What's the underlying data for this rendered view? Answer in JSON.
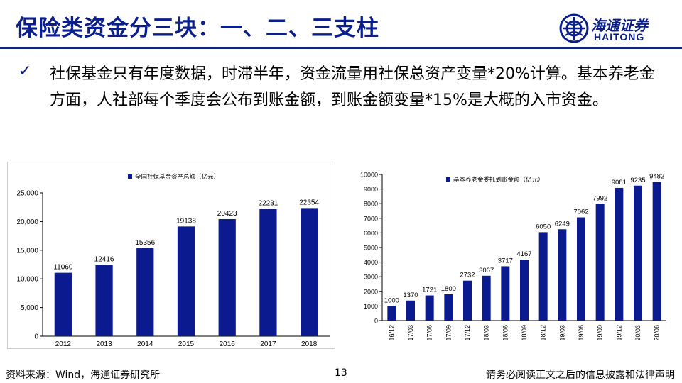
{
  "title": "保险类资金分三块：一、二、三支柱",
  "logo": {
    "cn": "海通证券",
    "en": "HAITONG"
  },
  "bullet": {
    "check": "✓",
    "text": "社保基金只有年度数据，时滞半年，资金流量用社保总资产变量*20%计算。基本养老金方面，人社部每个季度会公布到账金额，到账金额变量*15%是大概的入市资金。"
  },
  "colors": {
    "bar": "#0b1a8f",
    "title": "#0a1e8c"
  },
  "chart_data": [
    {
      "type": "bar",
      "title": "",
      "legend": "全国社保基金资产总额（亿元）",
      "categories": [
        "2012",
        "2013",
        "2014",
        "2015",
        "2016",
        "2017",
        "2018"
      ],
      "values": [
        11060,
        12416,
        15356,
        19138,
        20423,
        22231,
        22354
      ],
      "yticks": [
        "0",
        "5,000",
        "10,000",
        "15,000",
        "20,000",
        "25,000"
      ],
      "ylim": [
        0,
        25000
      ],
      "legend_position": "top"
    },
    {
      "type": "bar",
      "title": "",
      "legend": "基本养老金委托到账金额（亿元）",
      "categories": [
        "16/12",
        "17/03",
        "17/06",
        "17/09",
        "17/12",
        "18/03",
        "18/06",
        "18/09",
        "18/12",
        "19/03",
        "19/06",
        "19/09",
        "19/12",
        "20/03",
        "20/06"
      ],
      "values": [
        1000,
        1370,
        1721,
        1800,
        2732,
        3067,
        3717,
        4167,
        6050,
        6249,
        7062,
        7992,
        9081,
        9235,
        9482
      ],
      "yticks": [
        "0",
        "1000",
        "2000",
        "3000",
        "4000",
        "5000",
        "6000",
        "7000",
        "8000",
        "9000",
        "10000"
      ],
      "ylim": [
        0,
        10000
      ],
      "legend_position": "top"
    }
  ],
  "footer": {
    "source": "资料来源：Wind，海通证券研究所",
    "page": "13",
    "disclaimer": "请务必阅读正文之后的信息披露和法律声明"
  }
}
